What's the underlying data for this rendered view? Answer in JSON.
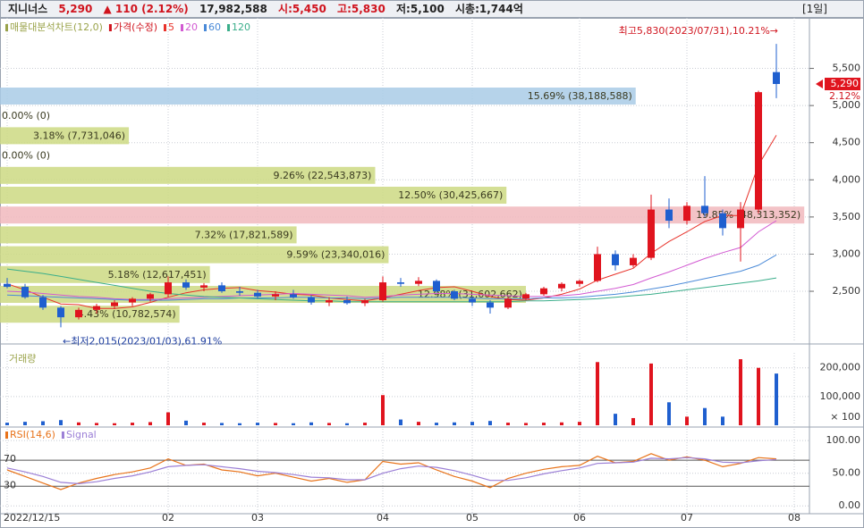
{
  "header": {
    "name": "지니너스",
    "price": "5,290",
    "change": "▲ 110 (2.12%)",
    "volume": "17,982,588",
    "open": "시:5,450",
    "high": "고:5,830",
    "low": "저:5,100",
    "cap": "시총:1,744억",
    "period": "[1일]"
  },
  "chart_data": [
    {
      "type": "candlestick",
      "indicator": "매물대분석차트(12,0)",
      "name": "가격(수정)",
      "categories": [
        "2022/12/15",
        null,
        null,
        null,
        null,
        null,
        null,
        null,
        null,
        "02",
        null,
        null,
        null,
        null,
        "03",
        null,
        null,
        null,
        null,
        null,
        null,
        "04",
        null,
        null,
        null,
        null,
        "05",
        null,
        null,
        null,
        null,
        null,
        "06",
        null,
        null,
        null,
        null,
        null,
        "07",
        null,
        null,
        null,
        null,
        null,
        "08"
      ],
      "open": [
        2600,
        2560,
        2420,
        2280,
        2150,
        2250,
        2300,
        2350,
        2400,
        2460,
        2620,
        2550,
        2580,
        2500,
        2480,
        2430,
        2460,
        2420,
        2350,
        2380,
        2340,
        2380,
        2620,
        2600,
        2640,
        2500,
        2400,
        2350,
        2280,
        2400,
        2460,
        2540,
        2600,
        2640,
        3000,
        2850,
        2950,
        3600,
        3450,
        3650,
        3550,
        3350,
        3600,
        5450,
        null
      ],
      "high": [
        2680,
        2600,
        2450,
        2300,
        2280,
        2330,
        2380,
        2420,
        2480,
        2700,
        2660,
        2610,
        2620,
        2560,
        2520,
        2500,
        2520,
        2450,
        2420,
        2430,
        2400,
        2700,
        2680,
        2690,
        2660,
        2520,
        2430,
        2380,
        2420,
        2480,
        2560,
        2620,
        2660,
        3100,
        3050,
        3000,
        3800,
        3750,
        3700,
        4050,
        3600,
        3700,
        5200,
        5830,
        null
      ],
      "low": [
        2540,
        2400,
        2250,
        2015,
        2120,
        2200,
        2260,
        2300,
        2360,
        2420,
        2520,
        2500,
        2480,
        2440,
        2400,
        2380,
        2400,
        2320,
        2300,
        2320,
        2300,
        2360,
        2560,
        2570,
        2480,
        2380,
        2300,
        2200,
        2260,
        2380,
        2440,
        2500,
        2560,
        2620,
        2780,
        2820,
        2920,
        3350,
        3400,
        3500,
        3250,
        2900,
        3550,
        5100,
        null
      ],
      "close": [
        2560,
        2420,
        2280,
        2150,
        2250,
        2300,
        2350,
        2400,
        2460,
        2620,
        2550,
        2580,
        2500,
        2480,
        2430,
        2460,
        2420,
        2350,
        2380,
        2340,
        2380,
        2620,
        2600,
        2640,
        2500,
        2400,
        2350,
        2280,
        2400,
        2460,
        2540,
        2600,
        2640,
        3000,
        2850,
        2950,
        3600,
        3450,
        3650,
        3550,
        3350,
        3600,
        5180,
        5290,
        null
      ],
      "up_color": "#e0141e",
      "down_color": "#1f5fcf",
      "series": [
        {
          "name": "5",
          "color": "#e8322a",
          "values": [
            2600,
            2520,
            2420,
            2330,
            2320,
            2270,
            2270,
            2290,
            2350,
            2420,
            2480,
            2520,
            2540,
            2550,
            2510,
            2490,
            2460,
            2450,
            2410,
            2390,
            2370,
            2410,
            2460,
            2510,
            2550,
            2560,
            2500,
            2430,
            2390,
            2380,
            2410,
            2460,
            2530,
            2650,
            2730,
            2810,
            3010,
            3170,
            3300,
            3440,
            3520,
            3520,
            4200,
            4600,
            null
          ]
        },
        {
          "name": "20",
          "color": "#d25ad2",
          "values": [
            2500,
            2490,
            2470,
            2450,
            2430,
            2420,
            2400,
            2390,
            2390,
            2400,
            2410,
            2420,
            2430,
            2440,
            2450,
            2460,
            2470,
            2460,
            2450,
            2440,
            2420,
            2430,
            2450,
            2460,
            2470,
            2470,
            2460,
            2450,
            2440,
            2430,
            2430,
            2440,
            2460,
            2500,
            2540,
            2590,
            2680,
            2760,
            2850,
            2940,
            3020,
            3090,
            3300,
            3450,
            null
          ]
        },
        {
          "name": "60",
          "color": "#4a8ad8",
          "values": [
            2450,
            2440,
            2430,
            2420,
            2410,
            2400,
            2390,
            2380,
            2380,
            2380,
            2390,
            2400,
            2400,
            2410,
            2410,
            2410,
            2420,
            2420,
            2410,
            2410,
            2400,
            2410,
            2420,
            2420,
            2420,
            2420,
            2410,
            2400,
            2400,
            2400,
            2410,
            2410,
            2420,
            2440,
            2460,
            2490,
            2530,
            2570,
            2620,
            2670,
            2720,
            2770,
            2850,
            2990,
            null
          ]
        },
        {
          "name": "120",
          "color": "#3aae8a",
          "values": [
            2800,
            2770,
            2740,
            2700,
            2660,
            2620,
            2580,
            2540,
            2500,
            2470,
            2450,
            2430,
            2420,
            2410,
            2400,
            2390,
            2380,
            2370,
            2370,
            2360,
            2360,
            2360,
            2360,
            2360,
            2360,
            2360,
            2360,
            2360,
            2360,
            2370,
            2370,
            2380,
            2390,
            2400,
            2420,
            2440,
            2460,
            2490,
            2520,
            2550,
            2580,
            2610,
            2640,
            2680,
            null
          ]
        }
      ],
      "ylim": [
        1815,
        6180
      ],
      "yticks": [
        {
          "value": 2500,
          "label": "2,500"
        },
        {
          "value": 3000,
          "label": "3,000"
        },
        {
          "value": 3500,
          "label": "3,500"
        },
        {
          "value": 4000,
          "label": "4,000"
        },
        {
          "value": 4500,
          "label": "4,500"
        },
        {
          "value": 5000,
          "label": "5,000"
        },
        {
          "value": 5500,
          "label": "5,500"
        }
      ],
      "grid": true,
      "profile": {
        "values": [
          15.69,
          0,
          3.18,
          0,
          9.26,
          12.5,
          19.85,
          7.32,
          9.59,
          5.18,
          12.98,
          4.43
        ],
        "value_labels": [
          "15.69% (38,188,588)",
          "0.00% (0)",
          "3.18% (7,731,046)",
          "0.00% (0)",
          "9.26% (22,543,873)",
          "12.50% (30,425,667)",
          "19.85% (48,313,352)",
          "7.32% (17,821,589)",
          "9.59% (23,340,016)",
          "5.18% (12,617,451)",
          "12.98% (31,602,662)",
          "4.43% (10,782,574)"
        ],
        "colors": [
          "#a9cbe6",
          "#cdd982",
          "#cdd982",
          "#cdd982",
          "#cdd982",
          "#cdd982",
          "#f1b9bd",
          "#cdd982",
          "#cdd982",
          "#cdd982",
          "#cdd982",
          "#cdd982"
        ]
      },
      "price_label": {
        "value": 5290,
        "label": "5,290"
      },
      "change_label": "2.12%",
      "annotations": [
        {
          "value": 5830,
          "label": "최고5,830(2023/07/31),10.21%→"
        },
        {
          "value": 2015,
          "label": "←최저2,015(2023/01/03),61.91%"
        }
      ]
    },
    {
      "type": "bar",
      "title": "거래량",
      "values": [
        9000,
        12000,
        14000,
        18000,
        10000,
        8000,
        7000,
        9000,
        11000,
        45000,
        16000,
        9000,
        8000,
        7000,
        9000,
        8000,
        7000,
        10000,
        8000,
        7000,
        9000,
        105000,
        20000,
        12000,
        9000,
        10000,
        12000,
        15000,
        9000,
        8000,
        9000,
        10000,
        12000,
        220000,
        40000,
        25000,
        215000,
        80000,
        30000,
        60000,
        30000,
        230000,
        200000,
        180000,
        null
      ],
      "color": "#e0141e",
      "ylim": [
        0,
        252000
      ],
      "yticks": [
        {
          "value": 100000,
          "label": "100,000"
        },
        {
          "value": 200000,
          "label": "200,000"
        }
      ],
      "unit": "× 100"
    },
    {
      "type": "line",
      "series": [
        {
          "name": "RSI(14,6)",
          "color": "#e8731a",
          "values": [
            55,
            45,
            35,
            25,
            35,
            42,
            48,
            52,
            58,
            72,
            62,
            64,
            55,
            52,
            46,
            50,
            44,
            38,
            42,
            36,
            40,
            68,
            64,
            66,
            55,
            45,
            38,
            28,
            42,
            50,
            56,
            60,
            62,
            76,
            66,
            68,
            80,
            70,
            75,
            70,
            60,
            65,
            74,
            72,
            null
          ]
        },
        {
          "name": "Signal",
          "color": "#9b7fd6",
          "values": [
            58,
            52,
            45,
            36,
            34,
            37,
            42,
            46,
            52,
            60,
            62,
            63,
            60,
            57,
            53,
            51,
            48,
            44,
            43,
            40,
            40,
            50,
            57,
            61,
            59,
            54,
            47,
            39,
            39,
            43,
            49,
            54,
            58,
            65,
            66,
            67,
            73,
            72,
            74,
            72,
            67,
            66,
            69,
            71,
            null
          ]
        }
      ],
      "ylim": [
        -12,
        118
      ],
      "yticks": [
        {
          "value": 0,
          "label": "0.00"
        },
        {
          "value": 50,
          "label": "50.00"
        },
        {
          "value": 100,
          "label": "100.00"
        }
      ],
      "levels": [
        70,
        30
      ]
    }
  ]
}
